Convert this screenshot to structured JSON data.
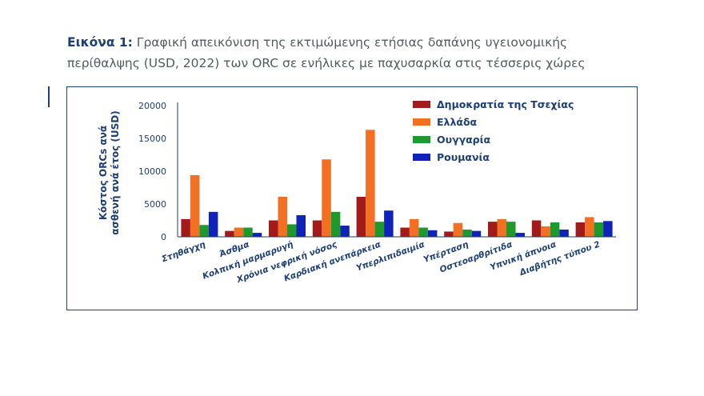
{
  "caption": {
    "label": "Εικόνα 1:",
    "text": " Γραφική απεικόνιση της εκτιμώμενης ετήσιας δαπάνης υγειονομικής περίθαλψης (USD, 2022) των ORC σε ενήλικες με παχυσαρκία στις τέσσερις χώρες"
  },
  "chart_data": {
    "type": "bar",
    "title": "",
    "xlabel": "",
    "ylabel": "Κόστος ORCs ανά ασθενή ανά έτος (USD)",
    "ylabel_lines": [
      "Κόστος ORCs ανά",
      "ασθενή ανά έτος (USD)"
    ],
    "ylim": [
      0,
      20000
    ],
    "yticks": [
      0,
      5000,
      10000,
      15000,
      20000
    ],
    "grid": false,
    "legend_position": "top-right",
    "categories": [
      "Στηθάγχη",
      "Άσθμα",
      "Κολπική μαρμαρυγή",
      "Χρόνια νεφρική νόσος",
      "Καρδιακή ανεπάρκεια",
      "Υπερλιπιδαιμία",
      "Υπέρταση",
      "Οστεοαρθρίτιδα",
      "Υπνική άπνοια",
      "Διαβήτης τύπου 2"
    ],
    "series": [
      {
        "name": "Δημοκρατία της Τσεχίας",
        "color": "#a31a1a",
        "values": [
          2700,
          900,
          2500,
          2500,
          6100,
          1400,
          800,
          2300,
          2500,
          2200
        ]
      },
      {
        "name": "Ελλάδα",
        "color": "#f36f21",
        "values": [
          9400,
          1400,
          6100,
          11800,
          16300,
          2700,
          2100,
          2700,
          1600,
          3000
        ]
      },
      {
        "name": "Ουγγαρία",
        "color": "#1e9a2c",
        "values": [
          1800,
          1400,
          1900,
          3800,
          2300,
          1400,
          1100,
          2300,
          2200,
          2200
        ]
      },
      {
        "name": "Ρουμανία",
        "color": "#1022b8",
        "values": [
          3800,
          600,
          3300,
          1700,
          4000,
          1000,
          900,
          600,
          1100,
          2400
        ]
      }
    ]
  }
}
